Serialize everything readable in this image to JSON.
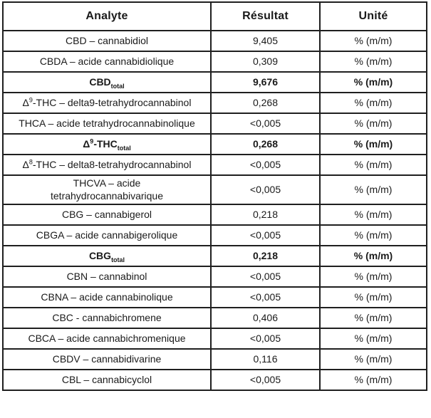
{
  "colors": {
    "border": "#1f1f1f",
    "text": "#1a1a1a",
    "background": "#ffffff"
  },
  "table": {
    "columns": [
      "Analyte",
      "Résultat",
      "Unité"
    ],
    "unit_all": "% (m/m)",
    "rows": [
      {
        "analyte": [
          {
            "text": "CBD – cannabidiol"
          }
        ],
        "result": "9,405",
        "unit": "% (m/m)",
        "bold": false
      },
      {
        "analyte": [
          {
            "text": "CBDA – acide cannabidiolique"
          }
        ],
        "result": "0,309",
        "unit": "% (m/m)",
        "bold": false
      },
      {
        "analyte": [
          {
            "text": "CBD"
          },
          {
            "text": "total",
            "sub": true
          }
        ],
        "result": "9,676",
        "unit": "% (m/m)",
        "bold": true
      },
      {
        "analyte": [
          {
            "text": "Δ"
          },
          {
            "text": "9",
            "sup": true
          },
          {
            "text": "-THC – delta9-tetrahydrocannabinol"
          }
        ],
        "result": "0,268",
        "unit": "% (m/m)",
        "bold": false
      },
      {
        "analyte": [
          {
            "text": "THCA – acide tetrahydrocannabinolique"
          }
        ],
        "result": "<0,005",
        "unit": "% (m/m)",
        "bold": false
      },
      {
        "analyte": [
          {
            "text": "Δ"
          },
          {
            "text": "9",
            "sup": true
          },
          {
            "text": "-THC"
          },
          {
            "text": "total",
            "sub": true
          }
        ],
        "result": "0,268",
        "unit": "% (m/m)",
        "bold": true
      },
      {
        "analyte": [
          {
            "text": "Δ"
          },
          {
            "text": "8",
            "sup": true
          },
          {
            "text": "-THC – delta8-tetrahydrocannabinol"
          }
        ],
        "result": "<0,005",
        "unit": "% (m/m)",
        "bold": false
      },
      {
        "analyte": [
          {
            "text": "THCVA – acide"
          },
          {
            "br": true
          },
          {
            "text": "tetrahydrocannabivarique"
          }
        ],
        "result": "<0,005",
        "unit": "% (m/m)",
        "bold": false
      },
      {
        "analyte": [
          {
            "text": "CBG – cannabigerol"
          }
        ],
        "result": "0,218",
        "unit": "% (m/m)",
        "bold": false
      },
      {
        "analyte": [
          {
            "text": "CBGA – acide cannabigerolique"
          }
        ],
        "result": "<0,005",
        "unit": "% (m/m)",
        "bold": false
      },
      {
        "analyte": [
          {
            "text": "CBG"
          },
          {
            "text": "total",
            "sub": true
          }
        ],
        "result": "0,218",
        "unit": "% (m/m)",
        "bold": true
      },
      {
        "analyte": [
          {
            "text": "CBN – cannabinol"
          }
        ],
        "result": "<0,005",
        "unit": "% (m/m)",
        "bold": false
      },
      {
        "analyte": [
          {
            "text": "CBNA – acide cannabinolique"
          }
        ],
        "result": "<0,005",
        "unit": "% (m/m)",
        "bold": false
      },
      {
        "analyte": [
          {
            "text": "CBC - cannabichromene"
          }
        ],
        "result": "0,406",
        "unit": "% (m/m)",
        "bold": false
      },
      {
        "analyte": [
          {
            "text": "CBCA – acide cannabichromenique"
          }
        ],
        "result": "<0,005",
        "unit": "% (m/m)",
        "bold": false
      },
      {
        "analyte": [
          {
            "text": "CBDV – cannabidivarine"
          }
        ],
        "result": "0,116",
        "unit": "% (m/m)",
        "bold": false
      },
      {
        "analyte": [
          {
            "text": "CBL – cannabicyclol"
          }
        ],
        "result": "<0,005",
        "unit": "% (m/m)",
        "bold": false
      }
    ]
  }
}
